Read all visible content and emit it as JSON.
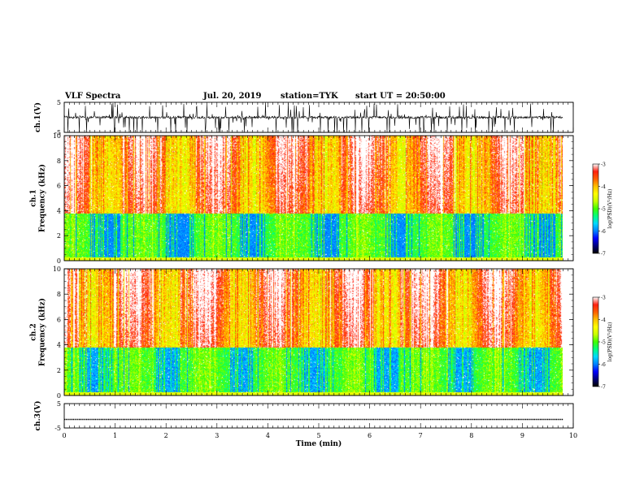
{
  "header": {
    "title": "VLF Spectra",
    "date": "Jul. 20, 2019",
    "station": "station=TYK",
    "start_time": "start UT = 20:50:00"
  },
  "colors": {
    "colormap": [
      "#000000",
      "#00007a",
      "#0000ff",
      "#0080ff",
      "#00d8ff",
      "#00ff80",
      "#40ff00",
      "#c8ff00",
      "#ffff00",
      "#ffc000",
      "#ff6000",
      "#ff2010",
      "#ffffff"
    ],
    "trace": "#000000"
  },
  "chart_data": [
    {
      "type": "line",
      "name": "ch1-waveform",
      "ylabel": "ch.1(V)",
      "ylim": [
        -5,
        5
      ],
      "yticks": [
        "5",
        "-5"
      ],
      "xlim": [
        0,
        10
      ],
      "series": [
        {
          "values_description_free": true,
          "baseline_v": 0,
          "spike_range_v": [
            -5,
            5
          ]
        }
      ]
    },
    {
      "type": "heatmap",
      "name": "ch1-spectrogram",
      "ylabel": "ch.1\nFrequency (kHz)",
      "ylim": [
        0,
        10
      ],
      "yticks": [
        "0",
        "2",
        "4",
        "6",
        "8",
        "10"
      ],
      "xlim": [
        0,
        10
      ],
      "colorbar": {
        "label": "log(PSD)(V²/Hz)",
        "range": [
          -7,
          -3
        ],
        "ticks": [
          "-3",
          "-4",
          "-5",
          "-6",
          "-7"
        ]
      }
    },
    {
      "type": "heatmap",
      "name": "ch2-spectrogram",
      "ylabel": "ch.2\nFrequency (kHz)",
      "ylim": [
        0,
        10
      ],
      "yticks": [
        "0",
        "2",
        "4",
        "6",
        "8",
        "10"
      ],
      "xlim": [
        0,
        10
      ],
      "colorbar": {
        "label": "log(PSD)(V²/Hz)",
        "range": [
          -7,
          -3
        ],
        "ticks": [
          "-3",
          "-4",
          "-5",
          "-6",
          "-7"
        ]
      }
    },
    {
      "type": "line",
      "name": "ch3-waveform",
      "ylabel": "ch.3(V)",
      "ylim": [
        -5,
        5
      ],
      "yticks": [
        "5",
        "-5"
      ],
      "xlim": [
        0,
        10
      ],
      "series": [
        {
          "constant_v": -1.5
        }
      ]
    }
  ],
  "x_axis": {
    "label": "Time (min)",
    "ticks": [
      "0",
      "1",
      "2",
      "3",
      "4",
      "5",
      "6",
      "7",
      "8",
      "9",
      "10"
    ],
    "range": [
      0,
      10
    ],
    "data_end": 9.8
  }
}
